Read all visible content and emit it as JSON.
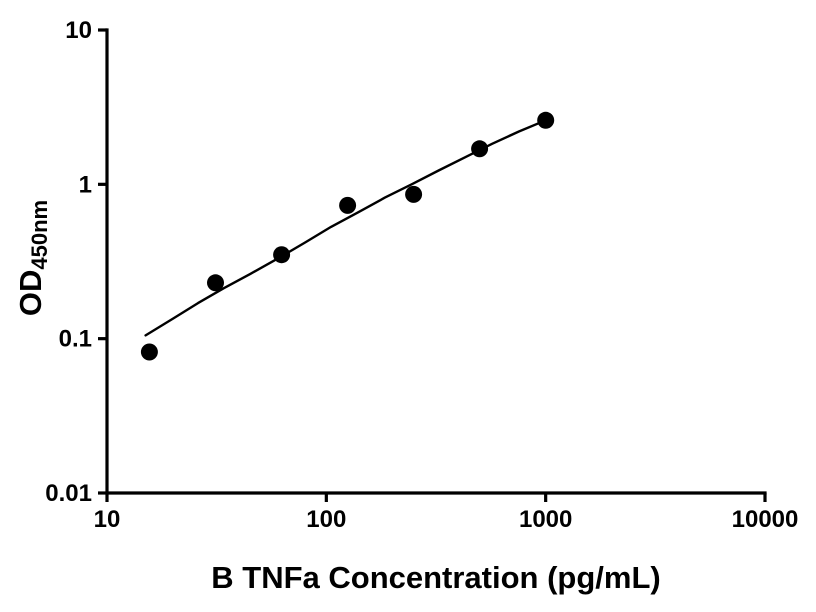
{
  "figure": {
    "background": "#ffffff",
    "foreground": "#000000"
  },
  "chart_data": {
    "type": "scatter",
    "title": "",
    "xlabel": "B TNFa Concentration (pg/mL)",
    "ylabel": "OD450nm",
    "ylabel_main": "OD",
    "ylabel_sub": "450nm",
    "x_scale": "log",
    "y_scale": "log",
    "xlim": [
      10,
      10000
    ],
    "ylim": [
      0.01,
      10
    ],
    "grid": false,
    "legend": false,
    "marker_color": "#000000",
    "line_color": "#000000",
    "x_ticks": [
      {
        "value": 10,
        "label": "10"
      },
      {
        "value": 100,
        "label": "100"
      },
      {
        "value": 1000,
        "label": "1000"
      },
      {
        "value": 10000,
        "label": "10000"
      }
    ],
    "y_ticks": [
      {
        "value": 0.01,
        "label": "0.01"
      },
      {
        "value": 0.1,
        "label": "0.1"
      },
      {
        "value": 1,
        "label": "1"
      },
      {
        "value": 10,
        "label": "10"
      }
    ],
    "points": [
      {
        "x": 15.6,
        "y": 0.082
      },
      {
        "x": 31.25,
        "y": 0.23
      },
      {
        "x": 62.5,
        "y": 0.35
      },
      {
        "x": 125,
        "y": 0.73
      },
      {
        "x": 250,
        "y": 0.86
      },
      {
        "x": 500,
        "y": 1.7
      },
      {
        "x": 1000,
        "y": 2.6
      }
    ],
    "fit_curve": [
      [
        15,
        0.105
      ],
      [
        20,
        0.135
      ],
      [
        26,
        0.17
      ],
      [
        34,
        0.212
      ],
      [
        45,
        0.263
      ],
      [
        60,
        0.33
      ],
      [
        80,
        0.42
      ],
      [
        105,
        0.53
      ],
      [
        140,
        0.66
      ],
      [
        185,
        0.82
      ],
      [
        245,
        1.0
      ],
      [
        325,
        1.23
      ],
      [
        430,
        1.5
      ],
      [
        570,
        1.83
      ],
      [
        755,
        2.2
      ],
      [
        1000,
        2.6
      ]
    ]
  }
}
